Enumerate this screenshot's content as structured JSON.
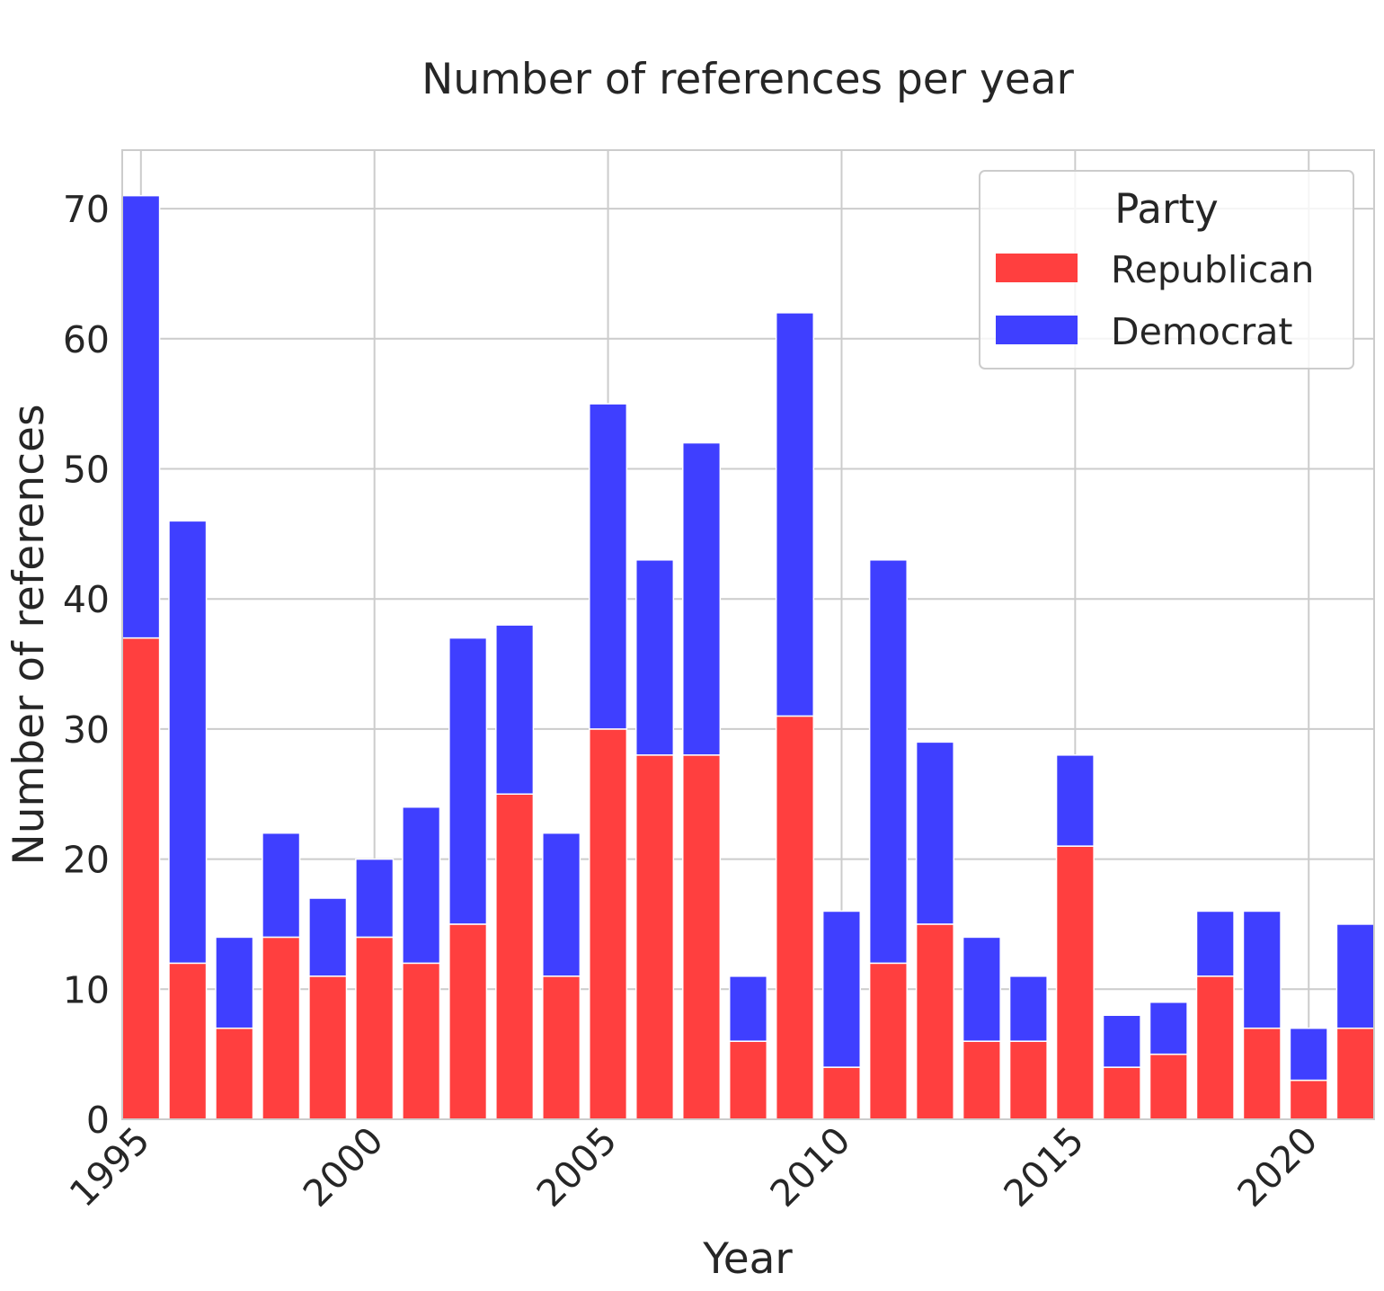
{
  "chart_data": {
    "type": "bar",
    "stacked": true,
    "title": "Number of references per year",
    "xlabel": "Year",
    "ylabel": "Number of references",
    "x": [
      1995,
      1996,
      1997,
      1998,
      1999,
      2000,
      2001,
      2002,
      2003,
      2004,
      2005,
      2006,
      2007,
      2008,
      2009,
      2010,
      2011,
      2012,
      2013,
      2014,
      2015,
      2016,
      2017,
      2018,
      2019,
      2020,
      2021
    ],
    "x_ticks": [
      "1995",
      "2000",
      "2005",
      "2010",
      "2015",
      "2020"
    ],
    "y_ticks": [
      "0",
      "10",
      "20",
      "30",
      "40",
      "50",
      "60",
      "70"
    ],
    "ylim": [
      0,
      74.5
    ],
    "xlim": [
      1994.6,
      2021.4
    ],
    "grid": true,
    "legend": {
      "title": "Party",
      "position": "top-right"
    },
    "series": [
      {
        "name": "Republican",
        "color": "#ff3f3f",
        "values": [
          37,
          12,
          7,
          14,
          11,
          14,
          12,
          15,
          25,
          11,
          30,
          28,
          28,
          6,
          31,
          4,
          12,
          15,
          6,
          6,
          21,
          4,
          5,
          11,
          7,
          3,
          7
        ]
      },
      {
        "name": "Democrat",
        "color": "#3f3fff",
        "values": [
          34,
          34,
          7,
          8,
          6,
          6,
          12,
          22,
          13,
          11,
          25,
          15,
          24,
          5,
          31,
          12,
          31,
          14,
          8,
          5,
          7,
          4,
          4,
          5,
          9,
          4,
          8
        ]
      }
    ]
  }
}
